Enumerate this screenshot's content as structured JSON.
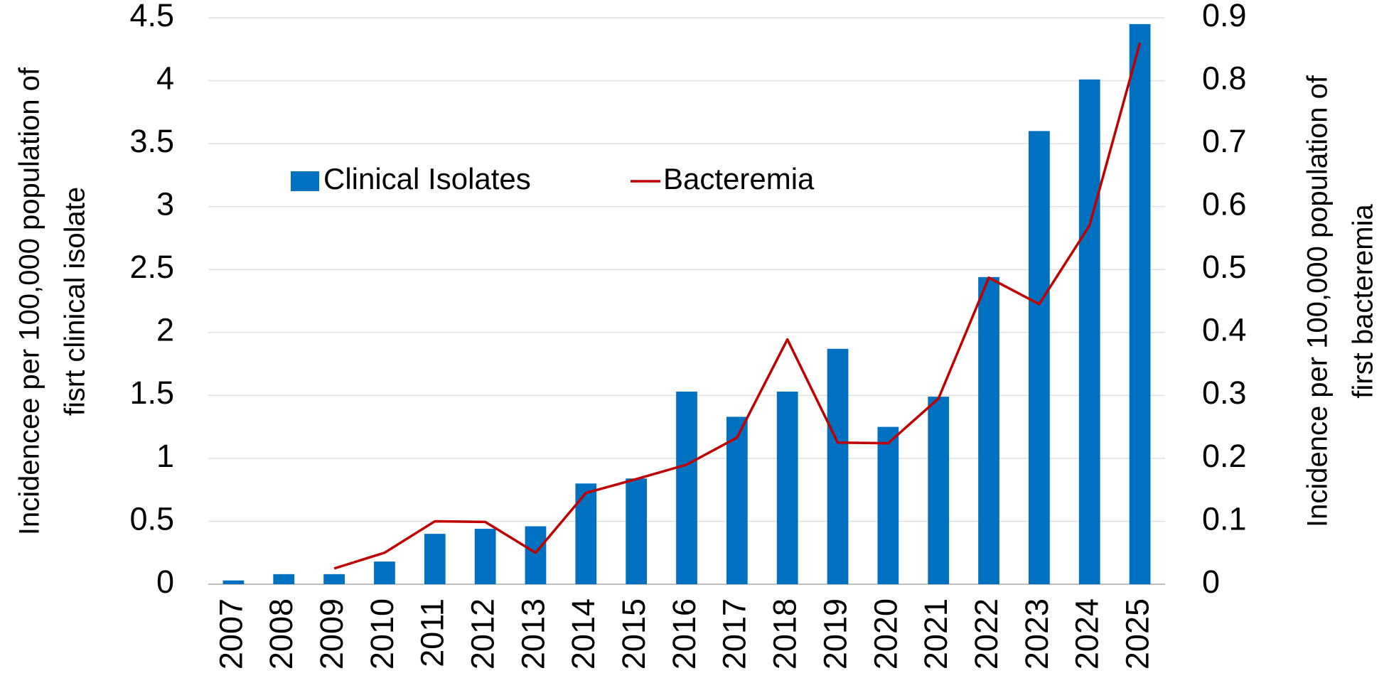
{
  "chart_data": {
    "type": "bar",
    "categories": [
      "2007",
      "2008",
      "2009",
      "2010",
      "2011",
      "2012",
      "2013",
      "2014",
      "2015",
      "2016",
      "2017",
      "2018",
      "2019",
      "2020",
      "2021",
      "2022",
      "2023",
      "2024",
      "2025"
    ],
    "y_label": [
      "Incidencee per 100,000 population of",
      "fisrt clinical isolate"
    ],
    "y2_label": [
      "Incidence per 100,000 population of",
      "first bacteremia"
    ],
    "series": [
      {
        "name": "Clinical Isolates",
        "type": "bar",
        "color": "#0070c0",
        "values": [
          0.03,
          0.08,
          0.08,
          0.18,
          0.4,
          0.44,
          0.46,
          0.8,
          0.84,
          1.53,
          1.33,
          1.53,
          1.87,
          1.25,
          1.49,
          2.44,
          3.6,
          4.01,
          4.45
        ]
      },
      {
        "name": "Bacteremia",
        "type": "line",
        "axis": "y2",
        "color": "#c00000",
        "values": [
          null,
          null,
          0.025,
          0.05,
          0.1,
          0.099,
          0.05,
          0.145,
          0.167,
          0.19,
          0.233,
          0.389,
          0.225,
          0.224,
          0.295,
          0.487,
          0.445,
          0.57,
          0.86
        ]
      }
    ],
    "ylim": [
      0,
      4.5
    ],
    "yticks": [
      0,
      0.5,
      1,
      1.5,
      2,
      2.5,
      3,
      3.5,
      4,
      4.5
    ],
    "y2lim": [
      0,
      0.9
    ],
    "y2ticks": [
      0,
      0.1,
      0.2,
      0.3,
      0.4,
      0.5,
      0.6,
      0.7,
      0.8,
      0.9
    ],
    "grid": true,
    "legend": "top-left"
  }
}
